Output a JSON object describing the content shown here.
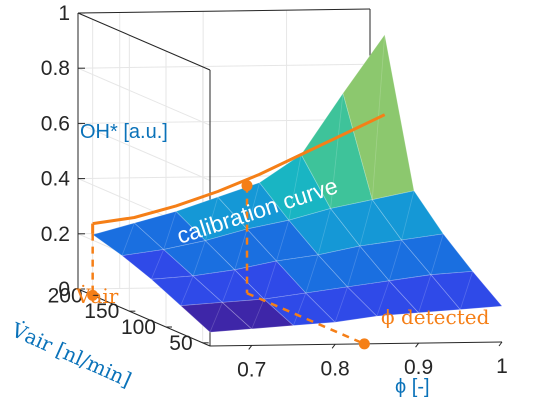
{
  "chart_data": {
    "type": "surface3d",
    "z_axis": {
      "ticks": [
        0,
        0.2,
        0.4,
        0.6,
        0.8,
        1
      ],
      "tick_labels": [
        "0",
        "0.2",
        "0.4",
        "0.6",
        "0.8",
        "1"
      ],
      "range": [
        0,
        1
      ]
    },
    "x_axis": {
      "label": "ϕ [-]",
      "ticks": [
        0.7,
        0.8,
        0.9,
        1
      ],
      "tick_labels": [
        "0.7",
        "0.8",
        "0.9",
        "1"
      ],
      "range": [
        0.65,
        1.0
      ]
    },
    "y_axis": {
      "label": "V̇air [nl/min]",
      "ticks": [
        50,
        100,
        150,
        200
      ],
      "tick_labels": [
        "50",
        "100",
        "150",
        "200"
      ],
      "range": [
        40,
        220
      ]
    },
    "surface_label": "OH* [a.u.]",
    "grid": true,
    "colormap": [
      "#3e26a8",
      "#2f4ae8",
      "#1a6fe0",
      "#1598d6",
      "#19b5c3",
      "#3ec39a",
      "#8cc86e"
    ],
    "surface": {
      "phi": [
        0.65,
        0.7,
        0.75,
        0.8,
        0.85,
        0.9,
        0.95,
        1.0
      ],
      "vair": [
        40,
        80,
        120,
        160,
        200
      ],
      "values": [
        [
          0.05,
          0.06,
          0.07,
          0.08,
          0.1,
          0.11,
          0.12,
          0.13
        ],
        [
          0.1,
          0.11,
          0.12,
          0.14,
          0.16,
          0.18,
          0.2,
          0.21
        ],
        [
          0.15,
          0.16,
          0.18,
          0.21,
          0.23,
          0.26,
          0.28,
          0.3
        ],
        [
          0.19,
          0.21,
          0.24,
          0.28,
          0.31,
          0.35,
          0.38,
          0.41
        ],
        [
          0.22,
          0.26,
          0.3,
          0.35,
          0.4,
          0.5,
          0.72,
          0.93
        ]
      ]
    },
    "calibration_curve": {
      "label": "calibration curve",
      "vair": 200,
      "phi": [
        0.65,
        0.7,
        0.75,
        0.8,
        0.85,
        0.9,
        0.95,
        1.0
      ],
      "oh": [
        0.26,
        0.28,
        0.32,
        0.37,
        0.43,
        0.5,
        0.57,
        0.64
      ]
    },
    "operating_point": {
      "phi": 0.835,
      "vair": 200,
      "oh": 0.39,
      "vair_label": "V̇air",
      "phi_label": "ϕ detected"
    },
    "colors": {
      "curve": "#f57f17",
      "label_blue": "#0a72b9",
      "axes": "#262626"
    }
  }
}
